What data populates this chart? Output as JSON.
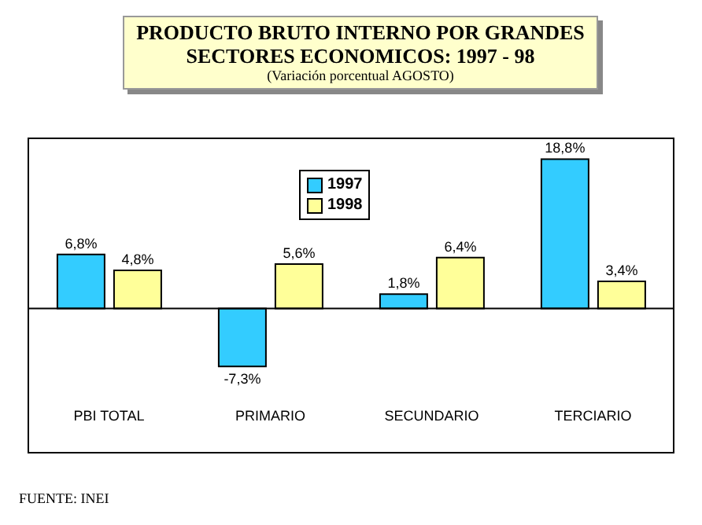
{
  "chart_data": {
    "type": "bar",
    "title": "PRODUCTO BRUTO INTERNO POR GRANDES SECTORES ECONOMICOS: 1997 - 98",
    "subtitle": "(Variación porcentual AGOSTO)",
    "annotations": [
      "FUENTE: INEI"
    ],
    "tick_labels": "x",
    "categories": [
      "PBI TOTAL",
      "PRIMARIO",
      "SECUNDARIO",
      "TERCIARIO"
    ],
    "series": [
      {
        "name": "1997",
        "color": "#33ccff",
        "values": [
          6.8,
          -7.3,
          1.8,
          18.8
        ],
        "value_labels": [
          "6,8%",
          "-7,3%",
          "1,8%",
          "18,8%"
        ]
      },
      {
        "name": "1998",
        "color": "#ffff99",
        "values": [
          4.8,
          5.6,
          6.4,
          3.4
        ],
        "value_labels": [
          "4,8%",
          "5,6%",
          "6,4%",
          "3,4%"
        ]
      }
    ],
    "legend": "top"
  }
}
